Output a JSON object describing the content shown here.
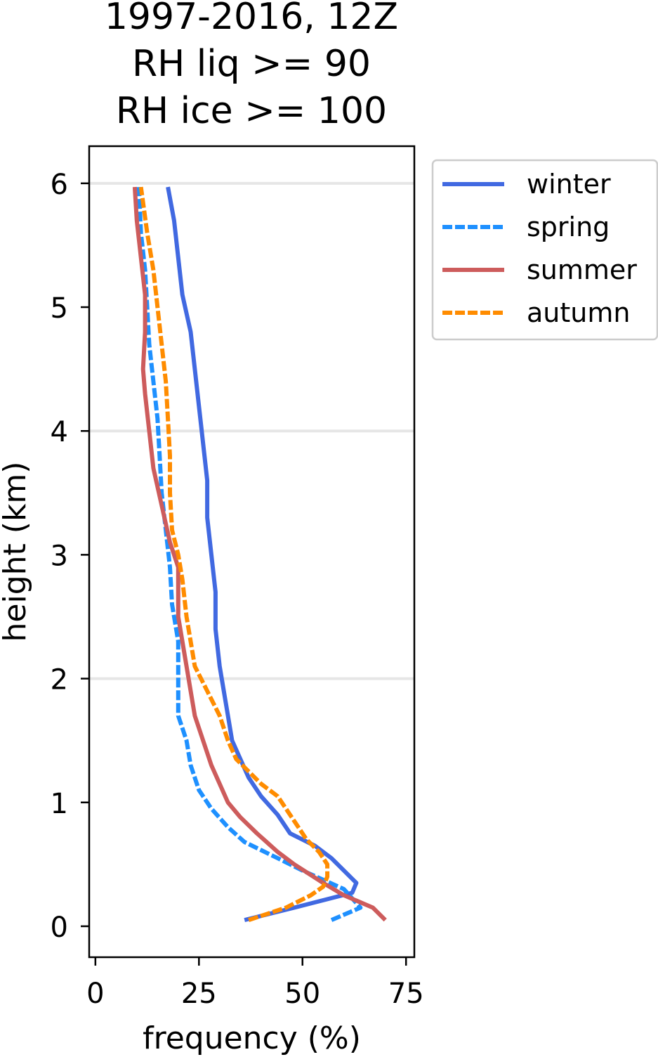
{
  "chart_data": {
    "type": "line",
    "title": [
      "1997-2016, 12Z",
      "RH liq >= 90",
      "RH ice >= 100"
    ],
    "xlabel": "frequency (%)",
    "ylabel": "height (km)",
    "xlim": [
      -1.5,
      77
    ],
    "ylim": [
      -0.25,
      6.3
    ],
    "xticks": [
      0,
      25,
      50,
      75
    ],
    "yticks": [
      0,
      1,
      2,
      3,
      4,
      5,
      6
    ],
    "grid": "horizontal lines at 2, 4, 6 km",
    "legend": "upper right, outside plot",
    "series": [
      {
        "name": "winter",
        "color": "#4169E1",
        "style": "solid",
        "points": [
          [
            36,
            0.05
          ],
          [
            48,
            0.15
          ],
          [
            62,
            0.27
          ],
          [
            63,
            0.35
          ],
          [
            57,
            0.55
          ],
          [
            53,
            0.65
          ],
          [
            47,
            0.75
          ],
          [
            44,
            0.9
          ],
          [
            40,
            1.05
          ],
          [
            37,
            1.2
          ],
          [
            35,
            1.35
          ],
          [
            33,
            1.5
          ],
          [
            32,
            1.7
          ],
          [
            31,
            1.9
          ],
          [
            30,
            2.1
          ],
          [
            29,
            2.4
          ],
          [
            29,
            2.7
          ],
          [
            28,
            3.0
          ],
          [
            27,
            3.3
          ],
          [
            27,
            3.6
          ],
          [
            26,
            3.9
          ],
          [
            25,
            4.2
          ],
          [
            24,
            4.5
          ],
          [
            23,
            4.8
          ],
          [
            21,
            5.1
          ],
          [
            20,
            5.4
          ],
          [
            19,
            5.7
          ],
          [
            17.5,
            5.97
          ]
        ]
      },
      {
        "name": "spring",
        "color": "#1E90FF",
        "style": "dashed",
        "points": [
          [
            57,
            0.05
          ],
          [
            64,
            0.15
          ],
          [
            60,
            0.3
          ],
          [
            50,
            0.45
          ],
          [
            44,
            0.55
          ],
          [
            36,
            0.68
          ],
          [
            32,
            0.8
          ],
          [
            28,
            0.95
          ],
          [
            25,
            1.1
          ],
          [
            23,
            1.3
          ],
          [
            22,
            1.5
          ],
          [
            20,
            1.7
          ],
          [
            20,
            2.0
          ],
          [
            20,
            2.3
          ],
          [
            18.5,
            2.6
          ],
          [
            18,
            2.9
          ],
          [
            17,
            3.2
          ],
          [
            16,
            3.5
          ],
          [
            15.5,
            3.8
          ],
          [
            15,
            4.1
          ],
          [
            14,
            4.4
          ],
          [
            13,
            4.7
          ],
          [
            12.5,
            5.0
          ],
          [
            12,
            5.3
          ],
          [
            11,
            5.6
          ],
          [
            10.5,
            5.97
          ]
        ]
      },
      {
        "name": "summer",
        "color": "#CD5C5C",
        "style": "solid",
        "points": [
          [
            70,
            0.05
          ],
          [
            67,
            0.15
          ],
          [
            60,
            0.25
          ],
          [
            55,
            0.35
          ],
          [
            48,
            0.5
          ],
          [
            44,
            0.6
          ],
          [
            39,
            0.75
          ],
          [
            35,
            0.88
          ],
          [
            32,
            1.0
          ],
          [
            30,
            1.15
          ],
          [
            28,
            1.3
          ],
          [
            26,
            1.5
          ],
          [
            24,
            1.7
          ],
          [
            23,
            1.9
          ],
          [
            22,
            2.1
          ],
          [
            21,
            2.3
          ],
          [
            20,
            2.5
          ],
          [
            20,
            2.7
          ],
          [
            20,
            2.9
          ],
          [
            18,
            3.1
          ],
          [
            16,
            3.4
          ],
          [
            14,
            3.7
          ],
          [
            13,
            4.0
          ],
          [
            12,
            4.3
          ],
          [
            11.5,
            4.5
          ],
          [
            12,
            4.8
          ],
          [
            12,
            5.1
          ],
          [
            11,
            5.4
          ],
          [
            10,
            5.7
          ],
          [
            9.5,
            5.97
          ]
        ]
      },
      {
        "name": "autumn",
        "color": "#FF8C00",
        "style": "dashed",
        "points": [
          [
            37,
            0.05
          ],
          [
            46,
            0.15
          ],
          [
            52,
            0.25
          ],
          [
            55,
            0.32
          ],
          [
            56,
            0.4
          ],
          [
            56,
            0.5
          ],
          [
            54,
            0.6
          ],
          [
            51,
            0.7
          ],
          [
            48,
            0.85
          ],
          [
            46,
            0.95
          ],
          [
            44,
            1.05
          ],
          [
            40,
            1.15
          ],
          [
            37,
            1.25
          ],
          [
            34,
            1.35
          ],
          [
            32,
            1.5
          ],
          [
            30,
            1.7
          ],
          [
            27,
            1.9
          ],
          [
            24,
            2.1
          ],
          [
            23,
            2.3
          ],
          [
            22,
            2.5
          ],
          [
            21,
            2.8
          ],
          [
            20,
            3.0
          ],
          [
            18.5,
            3.2
          ],
          [
            18,
            3.5
          ],
          [
            18,
            3.8
          ],
          [
            17.5,
            4.1
          ],
          [
            17,
            4.4
          ],
          [
            16,
            4.7
          ],
          [
            15,
            5.0
          ],
          [
            14,
            5.3
          ],
          [
            12.5,
            5.6
          ],
          [
            11,
            5.97
          ]
        ]
      }
    ]
  }
}
